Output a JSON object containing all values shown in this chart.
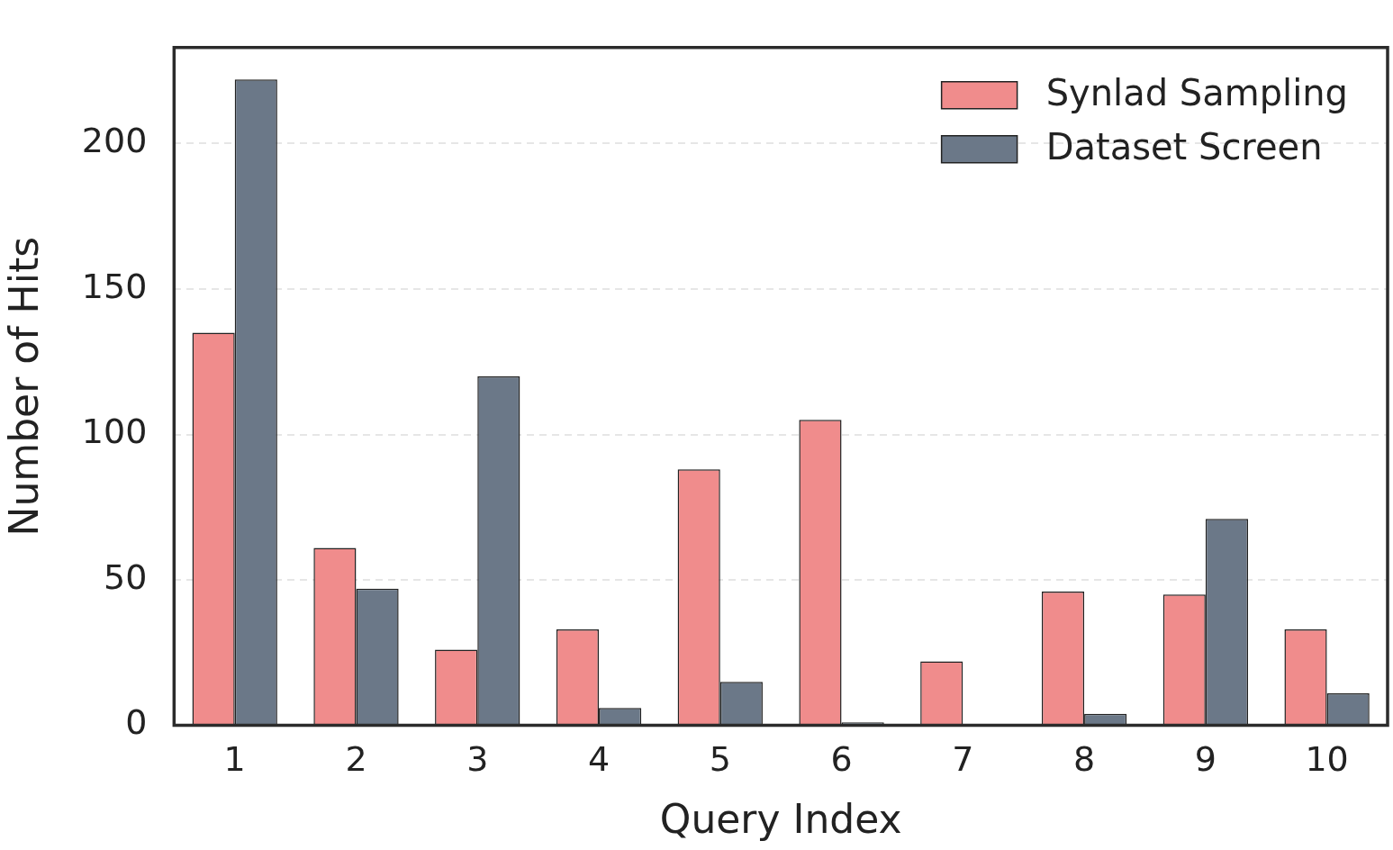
{
  "chart_data": {
    "type": "bar",
    "xlabel": "Query Index",
    "ylabel": "Number of Hits",
    "categories": [
      "1",
      "2",
      "3",
      "4",
      "5",
      "6",
      "7",
      "8",
      "9",
      "10"
    ],
    "series": [
      {
        "name": "Synlad Sampling",
        "color": "#f08c8c",
        "values": [
          135,
          61,
          26,
          33,
          88,
          105,
          22,
          46,
          45,
          33
        ]
      },
      {
        "name": "Dataset Screen",
        "color": "#6b7888",
        "values": [
          222,
          47,
          120,
          6,
          15,
          1,
          0,
          4,
          71,
          11
        ]
      }
    ],
    "ylim": [
      0,
      233
    ],
    "yticks": [
      0,
      50,
      100,
      150,
      200
    ],
    "grid": "y",
    "legend": "top right"
  }
}
